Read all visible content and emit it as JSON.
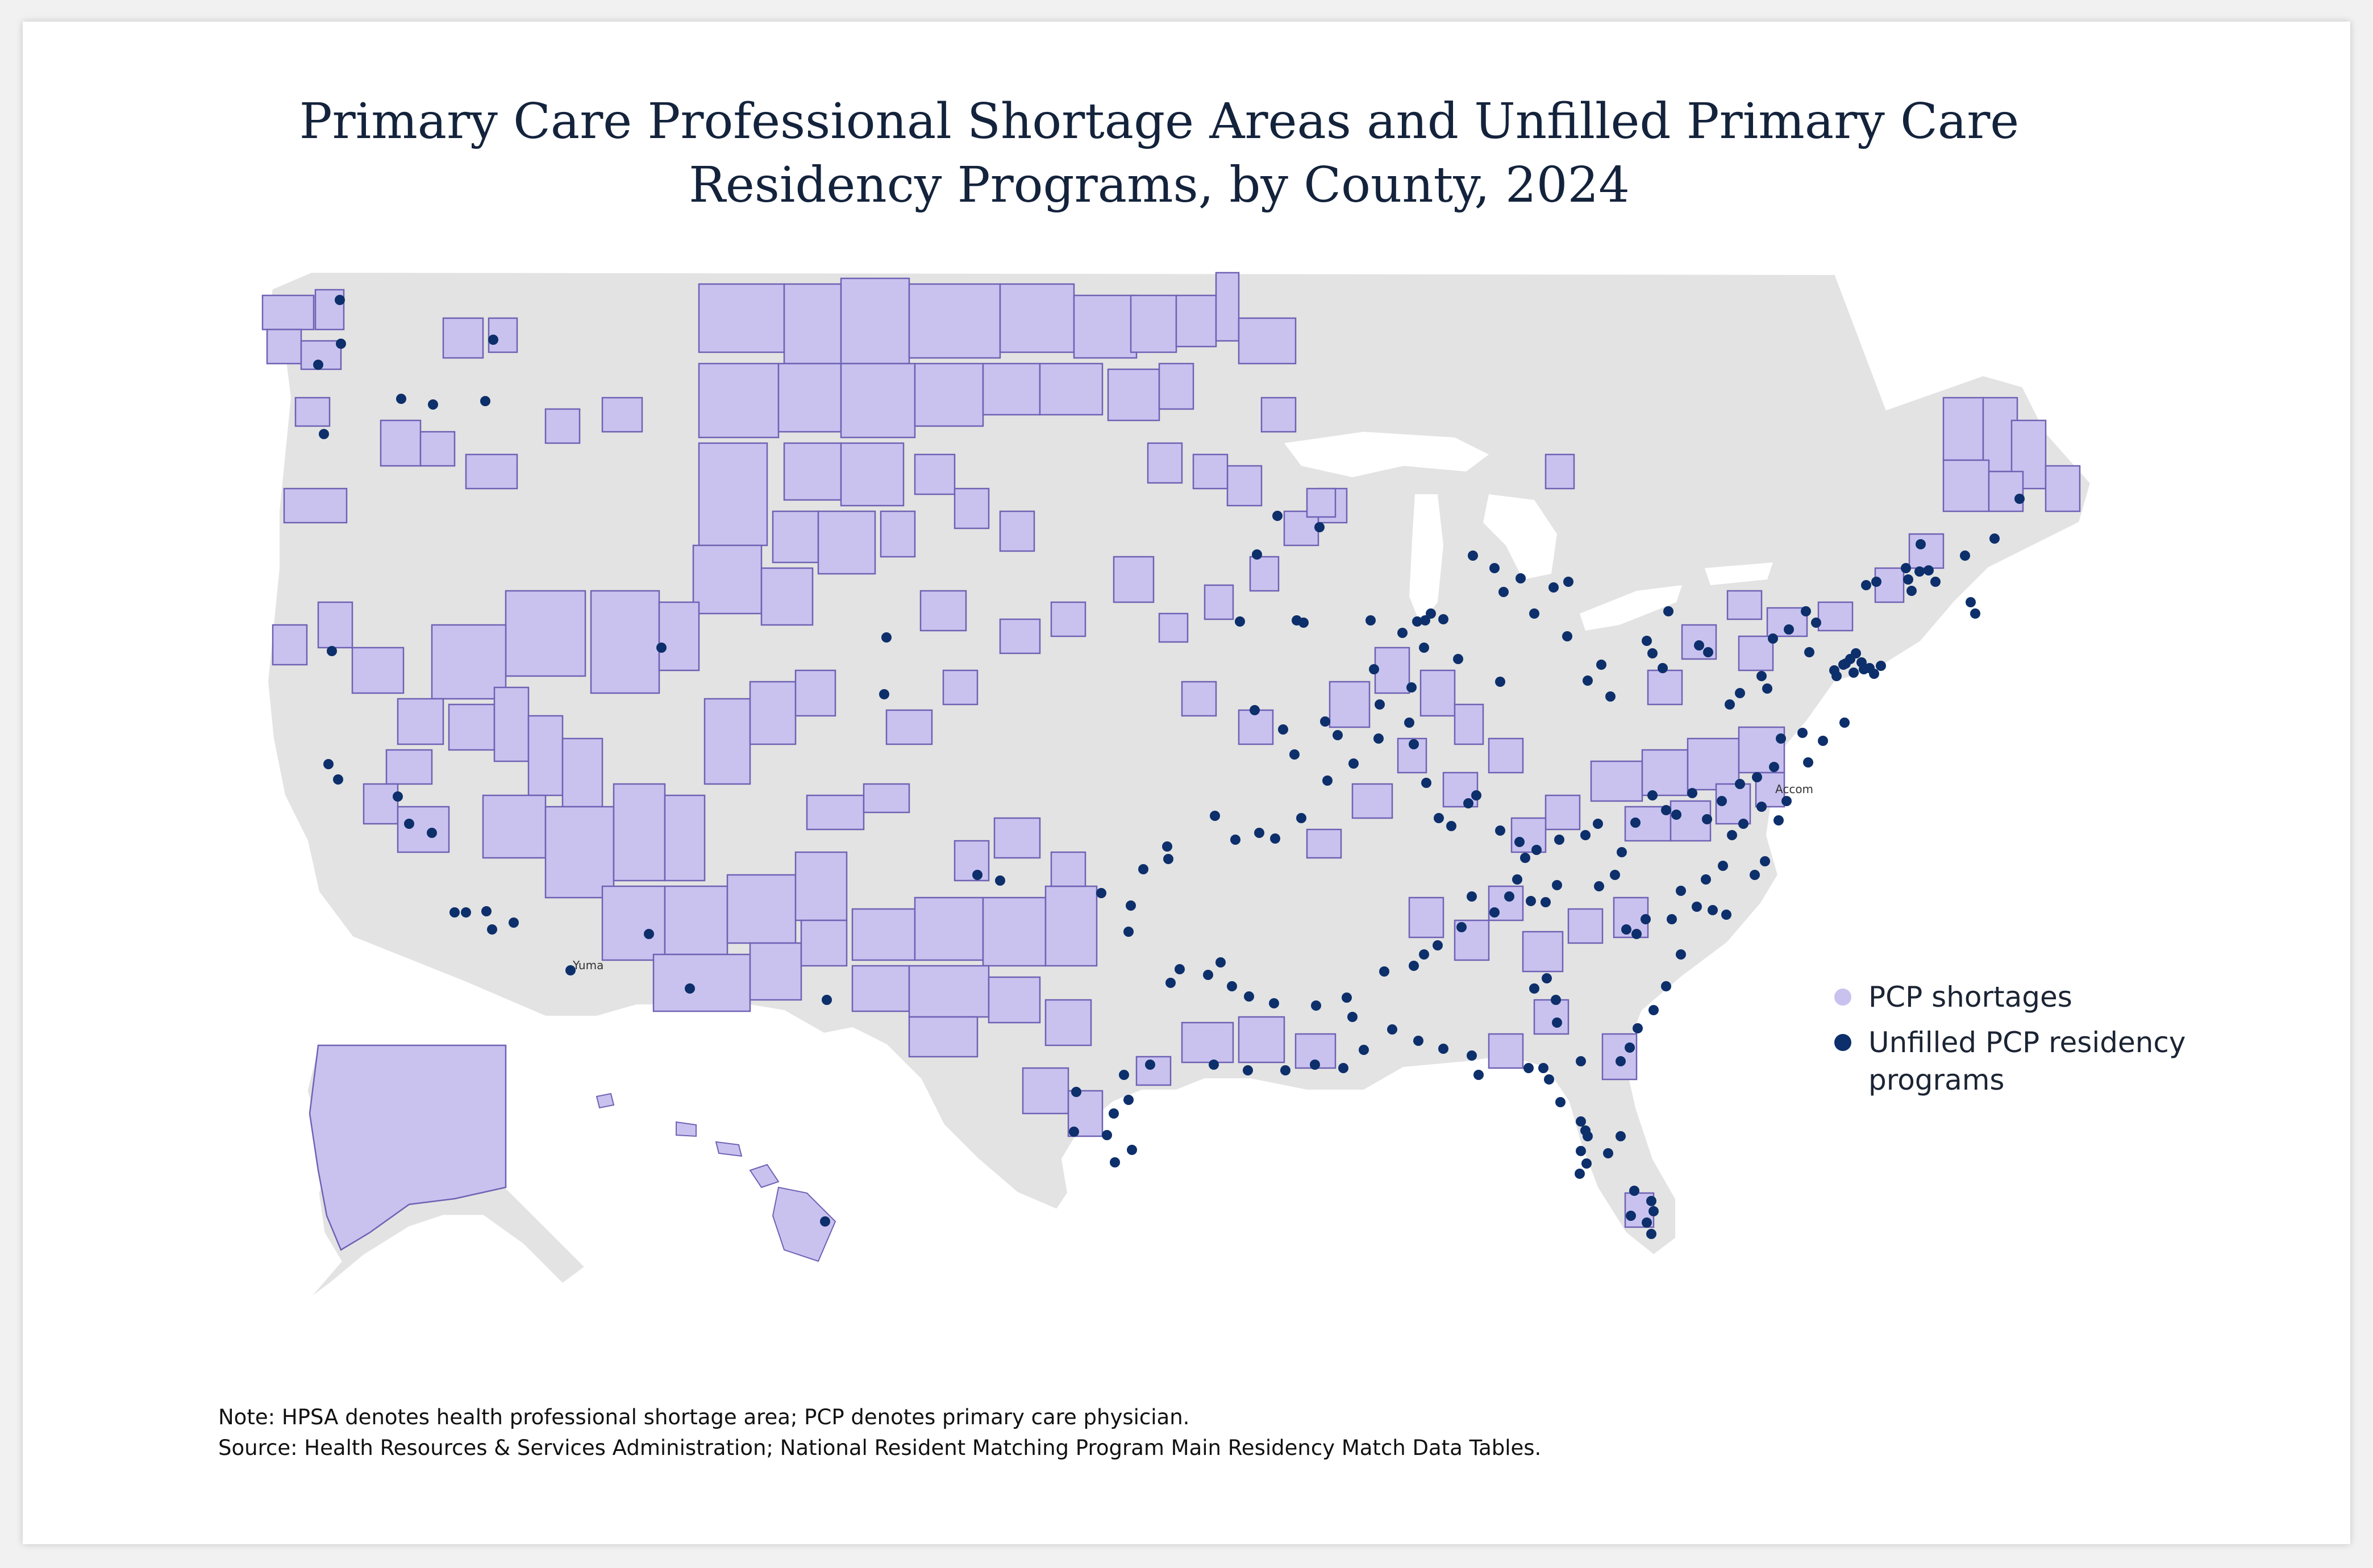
{
  "title": {
    "line1": "Primary Care Professional Shortage Areas and Unfilled Primary Care",
    "line2": "Residency Programs, by County, 2024"
  },
  "legend": {
    "items": [
      {
        "label": "PCP shortages",
        "color": "#c9c2ef"
      },
      {
        "label": "Unfilled PCP residency",
        "label_line2": "programs",
        "color": "#0d2f6b"
      }
    ]
  },
  "map_labels": {
    "yuma": "Yuma",
    "accomack": "Accom"
  },
  "colors": {
    "land": "#e3e3e3",
    "shortage_fill": "#c9c2ef",
    "shortage_stroke": "#6e62b4",
    "program_dot": "#0d2f6b",
    "border": "#ffffff"
  },
  "footer": {
    "note": "Note: HPSA denotes health professional shortage area; PCP denotes primary care physician.",
    "source": "Source: Health Resources & Services Administration; National Resident Matching Program Main Residency Match Data Tables."
  }
}
